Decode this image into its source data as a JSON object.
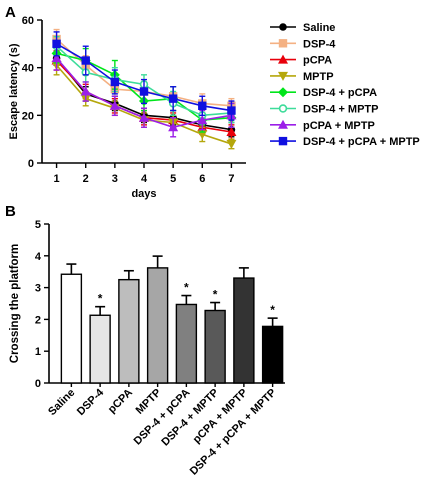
{
  "panels": [
    {
      "id": "A",
      "label": "A"
    },
    {
      "id": "B",
      "label": "B"
    }
  ],
  "chart_data": [
    {
      "panel": "A",
      "type": "line",
      "xlabel": "days",
      "ylabel": "Escape latency (s)",
      "x": [
        1,
        2,
        3,
        4,
        5,
        6,
        7
      ],
      "xlim": [
        0.5,
        7.5
      ],
      "ylim": [
        0,
        60
      ],
      "yticks": [
        0,
        20,
        40,
        60
      ],
      "legend_position": "right",
      "error_bars": true,
      "series": [
        {
          "name": "Saline",
          "color": "#000000",
          "marker": "circle",
          "values": [
            44,
            29,
            25,
            20,
            19,
            16,
            14
          ],
          "err": [
            3,
            3,
            3,
            3,
            3,
            3,
            3
          ]
        },
        {
          "name": "DSP-4",
          "color": "#f4b183",
          "marker": "square",
          "values": [
            52,
            41,
            31,
            30,
            28,
            25,
            24
          ],
          "err": [
            4,
            4,
            4,
            4,
            4,
            4,
            3
          ]
        },
        {
          "name": "pCPA",
          "color": "#e8000b",
          "marker": "triangle-up",
          "values": [
            43,
            30,
            24,
            19,
            18,
            15,
            13
          ],
          "err": [
            4,
            3,
            3,
            3,
            3,
            3,
            3
          ]
        },
        {
          "name": "MPTP",
          "color": "#b5a70c",
          "marker": "triangle-down",
          "values": [
            41,
            27,
            23,
            18,
            17,
            12,
            8
          ],
          "err": [
            4,
            3,
            3,
            3,
            3,
            3,
            2
          ]
        },
        {
          "name": "DSP-4 + pCPA",
          "color": "#00e51b",
          "marker": "diamond",
          "values": [
            46,
            43,
            37,
            26,
            27,
            18,
            19
          ],
          "err": [
            4,
            5,
            6,
            4,
            5,
            5,
            4
          ]
        },
        {
          "name": "DSP-4 + MPTP",
          "color": "#3ddc9a",
          "marker": "circle-open",
          "values": [
            49,
            38,
            35,
            33,
            25,
            20,
            21
          ],
          "err": [
            4,
            4,
            5,
            4,
            5,
            4,
            4
          ]
        },
        {
          "name": "pCPA + MPTP",
          "color": "#9b1ee8",
          "marker": "triangle-up",
          "values": [
            44,
            30,
            24,
            19,
            15,
            18,
            20
          ],
          "err": [
            5,
            4,
            4,
            4,
            4,
            4,
            5
          ]
        },
        {
          "name": "DSP-4 + pCPA + MPTP",
          "color": "#1010e0",
          "marker": "square",
          "values": [
            50,
            43,
            34,
            30,
            27,
            24,
            22
          ],
          "err": [
            5,
            6,
            5,
            5,
            5,
            4,
            4
          ]
        }
      ]
    },
    {
      "panel": "B",
      "type": "bar",
      "xlabel": "",
      "ylabel": "Crossing the platform",
      "ylim": [
        0,
        5
      ],
      "yticks": [
        0,
        1,
        2,
        3,
        4,
        5
      ],
      "error_bars": true,
      "categories": [
        "Saline",
        "DSP-4",
        "pCPA",
        "MPTP",
        "DSP-4 + pCPA",
        "DSP-4 + MPTP",
        "pCPA + MPTP",
        "DSP-4 + pCPA + MPTP"
      ],
      "values": [
        3.42,
        2.13,
        3.25,
        3.62,
        2.47,
        2.28,
        3.3,
        1.78
      ],
      "err": [
        0.32,
        0.27,
        0.28,
        0.37,
        0.28,
        0.25,
        0.32,
        0.26
      ],
      "bar_colors": [
        "#ffffff",
        "#e6e6e6",
        "#bdbdbd",
        "#a6a6a6",
        "#808080",
        "#595959",
        "#333333",
        "#000000"
      ],
      "significance": [
        "",
        "*",
        "",
        "",
        "*",
        "*",
        "",
        "*"
      ]
    }
  ]
}
